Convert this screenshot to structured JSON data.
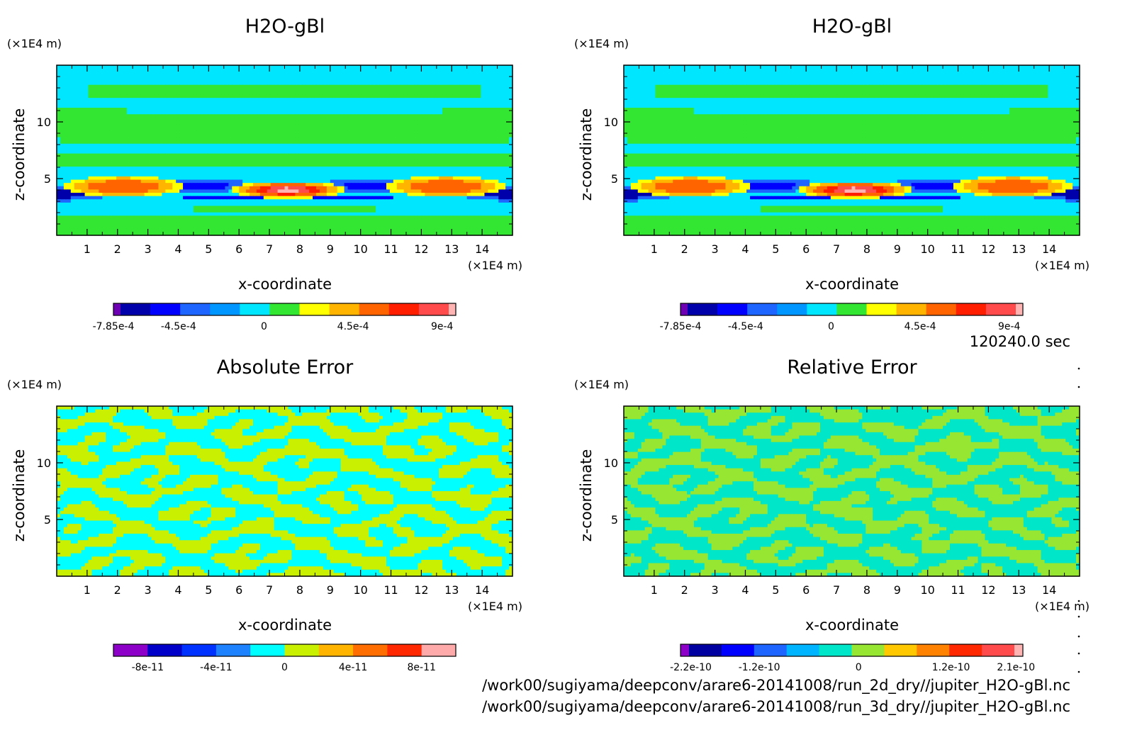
{
  "time_label": "120240.0 sec",
  "file_paths": [
    "/work00/sugiyama/deepconv/arare6-20141008/run_2d_dry//jupiter_H2O-gBl.nc",
    "/work00/sugiyama/deepconv/arare6-20141008/run_3d_dry//jupiter_H2O-gBl.nc"
  ],
  "chart_data": [
    {
      "type": "heatmap",
      "title": "H2O-gBl",
      "xlabel": "x-coordinate",
      "ylabel": "z-coordinate",
      "x_unit": "(×1E4 m)",
      "y_unit": "(×1E4 m)",
      "xlim": [
        0,
        15
      ],
      "ylim": [
        0,
        15
      ],
      "x_ticks": [
        "1",
        "2",
        "3",
        "4",
        "5",
        "6",
        "7",
        "8",
        "9",
        "10",
        "11",
        "12",
        "13",
        "14"
      ],
      "y_ticks": [
        "5",
        "10"
      ],
      "colorbar": {
        "colors": [
          "#6e00b4",
          "#0000aa",
          "#0000ff",
          "#1e64ff",
          "#0096ff",
          "#00e6ff",
          "#32e632",
          "#ffff00",
          "#ffb400",
          "#ff6400",
          "#ff1e00",
          "#ff4b4b",
          "#ffb4b4"
        ],
        "tick_labels": [
          "-7.85e-4",
          "-4.5e-4",
          "0",
          "4.5e-4",
          "9e-4"
        ]
      }
    },
    {
      "type": "heatmap",
      "title": "H2O-gBl",
      "xlabel": "x-coordinate",
      "ylabel": "z-coordinate",
      "x_unit": "(×1E4 m)",
      "y_unit": "(×1E4 m)",
      "xlim": [
        0,
        15
      ],
      "ylim": [
        0,
        15
      ],
      "x_ticks": [
        "1",
        "2",
        "3",
        "4",
        "5",
        "6",
        "7",
        "8",
        "9",
        "10",
        "11",
        "12",
        "13",
        "14"
      ],
      "y_ticks": [
        "5",
        "10"
      ],
      "colorbar": {
        "colors": [
          "#6e00b4",
          "#0000aa",
          "#0000ff",
          "#1e64ff",
          "#0096ff",
          "#00e6ff",
          "#32e632",
          "#ffff00",
          "#ffb400",
          "#ff6400",
          "#ff1e00",
          "#ff4b4b",
          "#ffb4b4"
        ],
        "tick_labels": [
          "-7.85e-4",
          "-4.5e-4",
          "0",
          "4.5e-4",
          "9e-4"
        ]
      }
    },
    {
      "type": "heatmap",
      "title": "Absolute Error",
      "xlabel": "x-coordinate",
      "ylabel": "z-coordinate",
      "x_unit": "(×1E4 m)",
      "y_unit": "(×1E4 m)",
      "xlim": [
        0,
        15
      ],
      "ylim": [
        0,
        15
      ],
      "x_ticks": [
        "1",
        "2",
        "3",
        "4",
        "5",
        "6",
        "7",
        "8",
        "9",
        "10",
        "11",
        "12",
        "13",
        "14"
      ],
      "y_ticks": [
        "5",
        "10"
      ],
      "colorbar": {
        "colors": [
          "#8c00c8",
          "#0000c8",
          "#0032ff",
          "#1e82ff",
          "#00ffff",
          "#c8f000",
          "#ffb400",
          "#ff6e00",
          "#ff2800",
          "#ffaaaa"
        ],
        "tick_labels": [
          "-8e-11",
          "-4e-11",
          "0",
          "4e-11",
          "8e-11"
        ]
      }
    },
    {
      "type": "heatmap",
      "title": "Relative Error",
      "xlabel": "x-coordinate",
      "ylabel": "z-coordinate",
      "x_unit": "(×1E4 m)",
      "y_unit": "(×1E4 m)",
      "xlim": [
        0,
        15
      ],
      "ylim": [
        0,
        15
      ],
      "x_ticks": [
        "1",
        "2",
        "3",
        "4",
        "5",
        "6",
        "7",
        "8",
        "9",
        "10",
        "11",
        "12",
        "13",
        "14"
      ],
      "y_ticks": [
        "5",
        "10"
      ],
      "colorbar": {
        "colors": [
          "#8c00c8",
          "#0000a0",
          "#0000ff",
          "#1e64ff",
          "#00b4ff",
          "#00e6c8",
          "#96e632",
          "#ffc800",
          "#ff8200",
          "#ff2800",
          "#ff4b4b",
          "#ffb4b4"
        ],
        "tick_labels": [
          "-2.2e-10",
          "-1.2e-10",
          "0",
          "1.2e-10",
          "2.1e-10"
        ]
      }
    }
  ]
}
